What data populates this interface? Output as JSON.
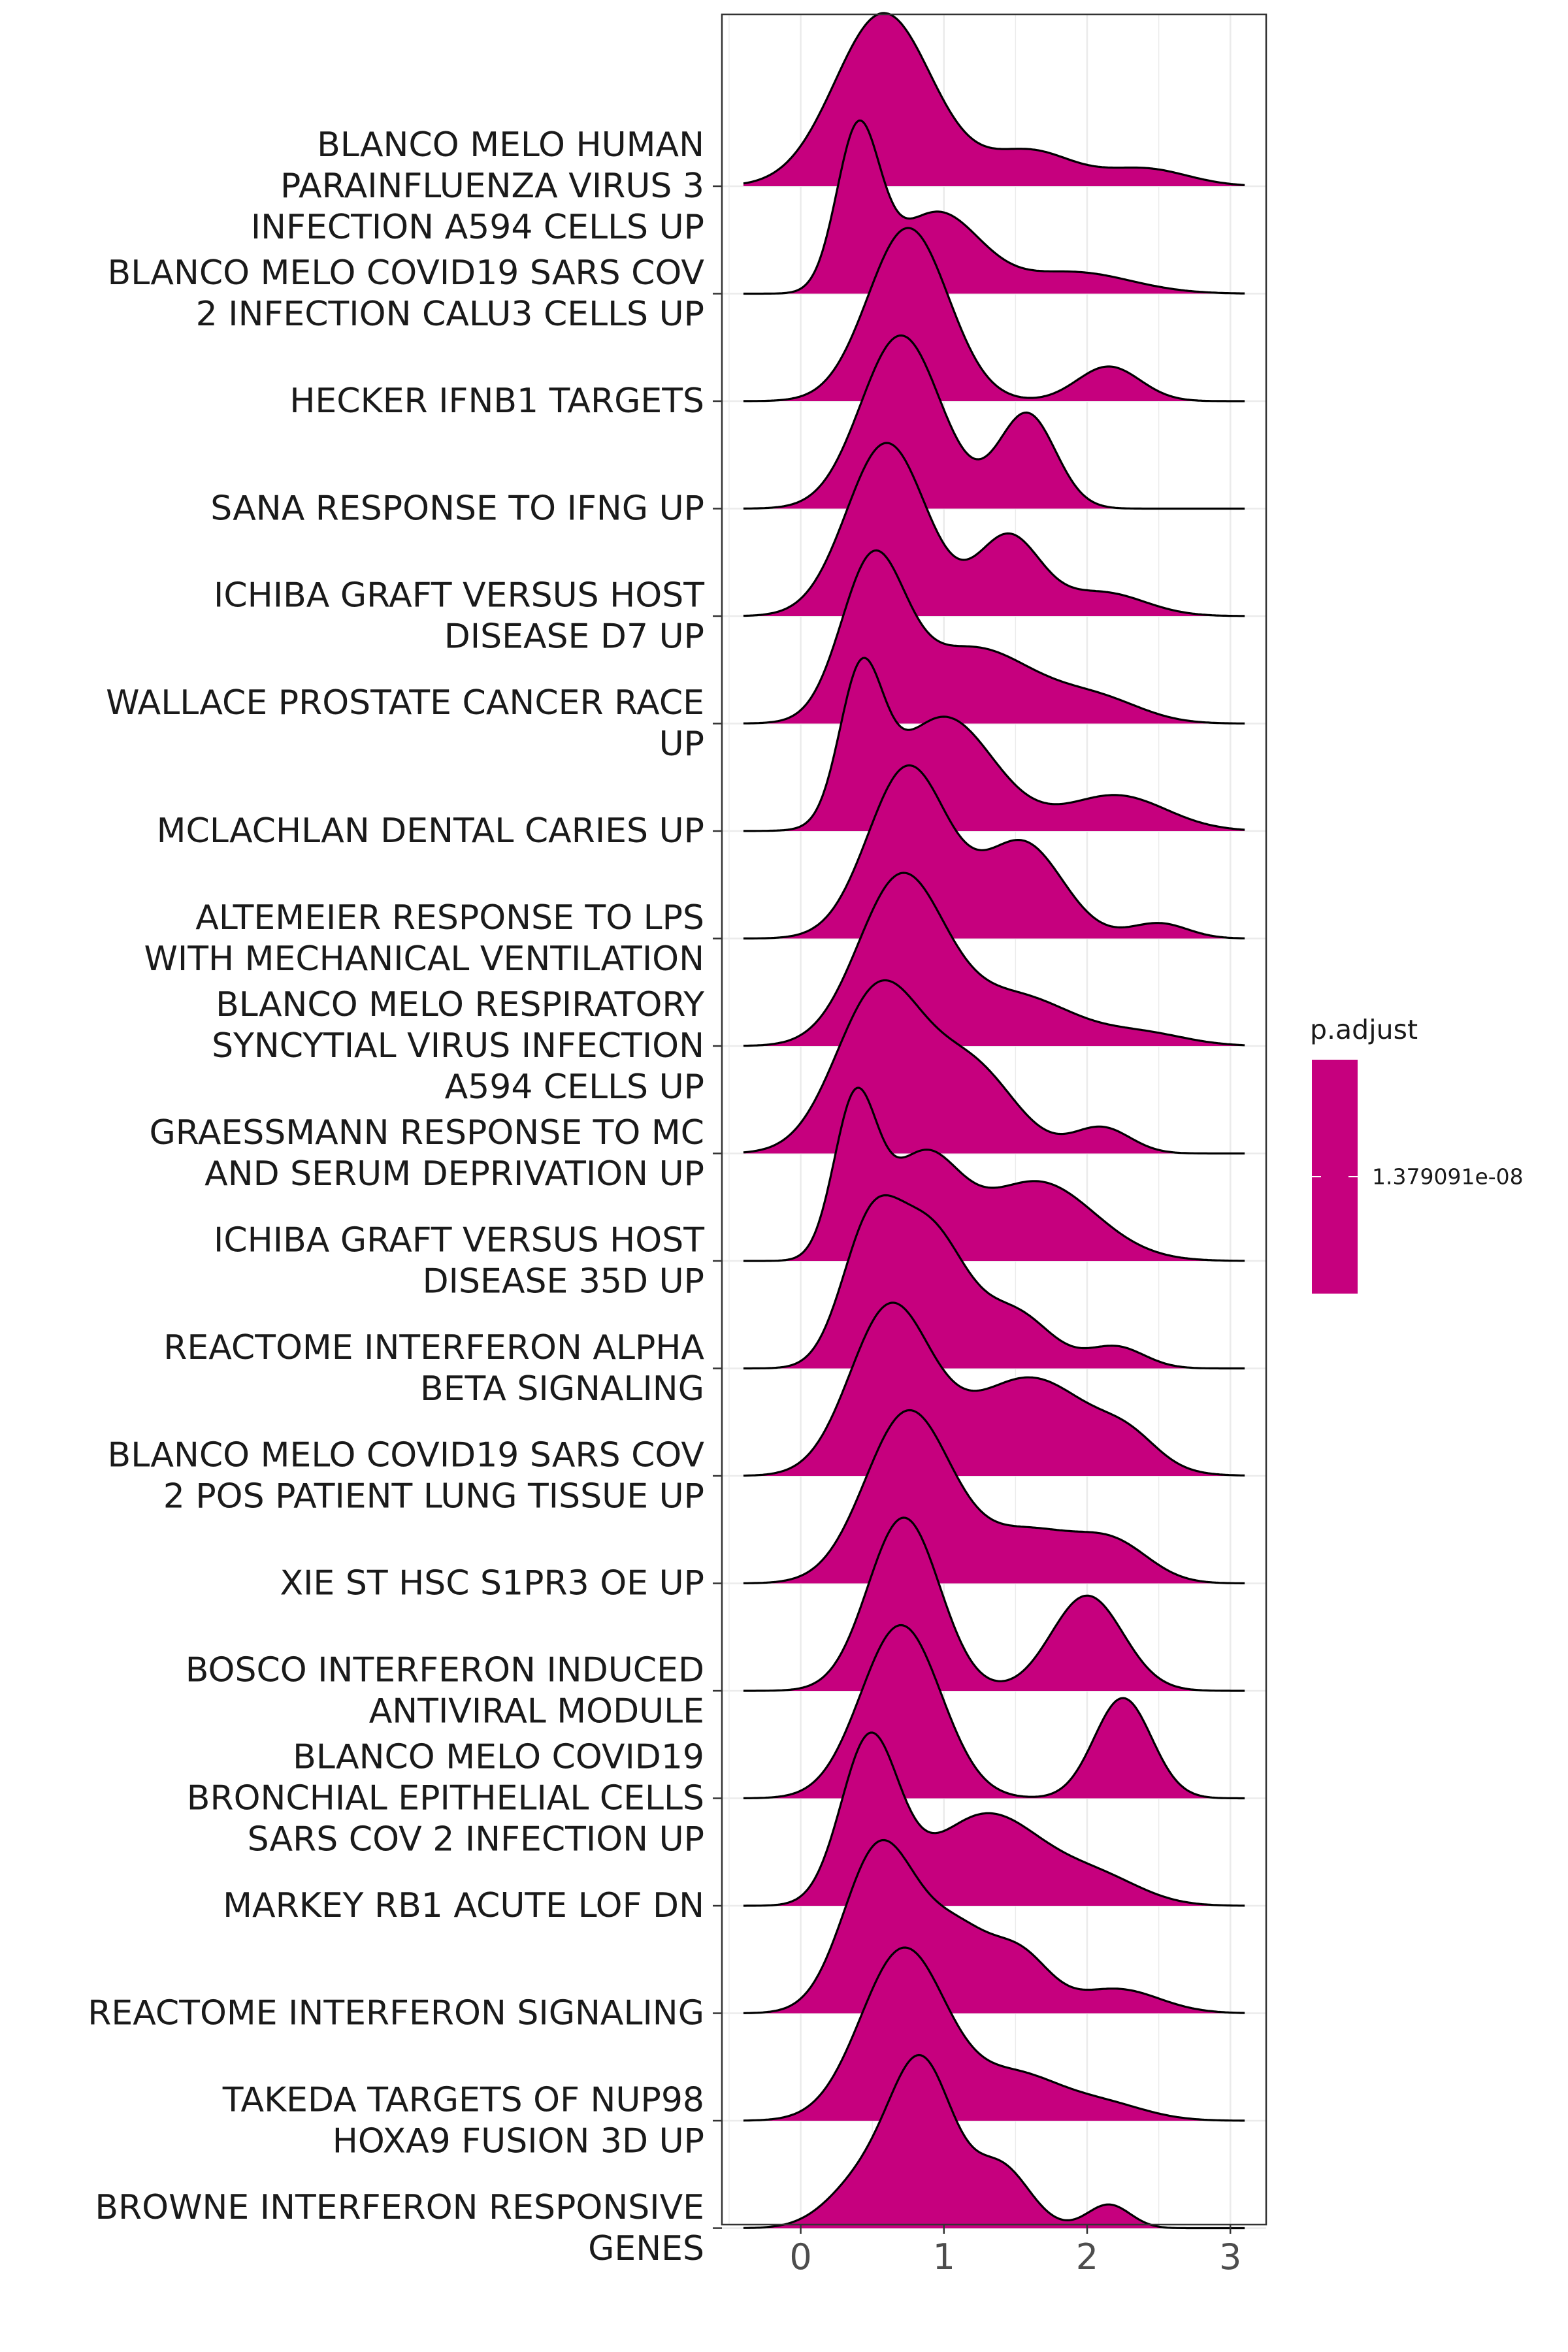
{
  "chart_data": {
    "type": "ridgeline",
    "xlim": [
      -0.55,
      3.25
    ],
    "x_ticks": [
      0,
      1,
      2,
      3
    ],
    "fill_color": "#C6007E",
    "grid": true,
    "legend": {
      "title": "p.adjust",
      "position": "right",
      "color": "#C6007E",
      "labels": [
        "1.379091e-08"
      ]
    },
    "series": [
      {
        "label": [
          "BLANCO MELO HUMAN",
          "PARAINFLUENZA VIRUS 3",
          "INFECTION A594 CELLS UP"
        ],
        "peaks": [
          [
            0.58,
            0.34,
            1.0
          ],
          [
            1.6,
            0.3,
            0.2
          ],
          [
            2.4,
            0.3,
            0.1
          ]
        ]
      },
      {
        "label": [
          "BLANCO MELO COVID19 SARS COV",
          "2 INFECTION CALU3 CELLS UP"
        ],
        "peaks": [
          [
            0.4,
            0.15,
            0.88
          ],
          [
            0.95,
            0.3,
            0.45
          ],
          [
            1.9,
            0.4,
            0.12
          ]
        ]
      },
      {
        "label": [
          "HECKER IFNB1 TARGETS"
        ],
        "peaks": [
          [
            0.75,
            0.28,
            1.0
          ],
          [
            2.15,
            0.22,
            0.2
          ]
        ]
      },
      {
        "label": [
          "SANA RESPONSE TO IFNG UP"
        ],
        "peaks": [
          [
            0.7,
            0.28,
            0.95
          ],
          [
            1.58,
            0.2,
            0.52
          ]
        ]
      },
      {
        "label": [
          "ICHIBA GRAFT VERSUS HOST",
          "DISEASE D7 UP"
        ],
        "peaks": [
          [
            0.6,
            0.28,
            0.88
          ],
          [
            1.45,
            0.22,
            0.4
          ],
          [
            2.1,
            0.3,
            0.12
          ]
        ]
      },
      {
        "label": [
          "WALLACE PROSTATE CANCER RACE",
          "UP"
        ],
        "peaks": [
          [
            0.5,
            0.22,
            0.75
          ],
          [
            1.2,
            0.45,
            0.38
          ],
          [
            2.1,
            0.3,
            0.1
          ]
        ]
      },
      {
        "label": [
          "MCLACHLAN DENTAL CARIES UP"
        ],
        "peaks": [
          [
            0.42,
            0.15,
            0.6
          ],
          [
            1.0,
            0.35,
            0.48
          ],
          [
            2.2,
            0.35,
            0.15
          ]
        ]
      },
      {
        "label": [
          "ALTEMEIER RESPONSE TO LPS",
          "WITH MECHANICAL VENTILATION"
        ],
        "peaks": [
          [
            0.75,
            0.28,
            0.9
          ],
          [
            1.55,
            0.28,
            0.5
          ],
          [
            2.5,
            0.2,
            0.08
          ]
        ]
      },
      {
        "label": [
          "BLANCO MELO RESPIRATORY",
          "SYNCYTIAL VIRUS INFECTION",
          "A594 CELLS UP"
        ],
        "peaks": [
          [
            0.7,
            0.3,
            1.0
          ],
          [
            1.5,
            0.4,
            0.3
          ],
          [
            2.4,
            0.3,
            0.07
          ]
        ]
      },
      {
        "label": [
          "GRAESSMANN RESPONSE TO MC",
          "AND SERUM DEPRIVATION UP"
        ],
        "peaks": [
          [
            0.55,
            0.3,
            0.95
          ],
          [
            1.2,
            0.3,
            0.48
          ],
          [
            2.1,
            0.2,
            0.15
          ]
        ]
      },
      {
        "label": [
          "ICHIBA GRAFT VERSUS HOST",
          "DISEASE 35D UP"
        ],
        "peaks": [
          [
            0.38,
            0.15,
            0.78
          ],
          [
            0.85,
            0.25,
            0.5
          ],
          [
            1.65,
            0.4,
            0.4
          ]
        ]
      },
      {
        "label": [
          "REACTOME INTERFERON ALPHA",
          "BETA SIGNALING"
        ],
        "peaks": [
          [
            0.48,
            0.2,
            0.72
          ],
          [
            0.9,
            0.25,
            0.75
          ],
          [
            1.5,
            0.25,
            0.3
          ],
          [
            2.2,
            0.2,
            0.12
          ]
        ]
      },
      {
        "label": [
          "BLANCO MELO COVID19 SARS COV",
          "2 POS PATIENT LUNG TISSUE UP"
        ],
        "peaks": [
          [
            0.62,
            0.28,
            0.75
          ],
          [
            1.6,
            0.45,
            0.45
          ],
          [
            2.3,
            0.2,
            0.1
          ]
        ]
      },
      {
        "label": [
          "XIE ST HSC S1PR3 OE UP"
        ],
        "peaks": [
          [
            0.75,
            0.3,
            1.0
          ],
          [
            1.6,
            0.35,
            0.3
          ],
          [
            2.2,
            0.25,
            0.2
          ]
        ]
      },
      {
        "label": [
          "BOSCO INTERFERON INDUCED",
          "ANTIVIRAL MODULE"
        ],
        "peaks": [
          [
            0.72,
            0.25,
            1.0
          ],
          [
            2.0,
            0.25,
            0.55
          ]
        ]
      },
      {
        "label": [
          "BLANCO MELO COVID19",
          "BRONCHIAL EPITHELIAL CELLS",
          "SARS COV 2 INFECTION UP"
        ],
        "peaks": [
          [
            0.7,
            0.28,
            0.95
          ],
          [
            2.25,
            0.2,
            0.55
          ]
        ]
      },
      {
        "label": [
          "MARKEY RB1 ACUTE LOF DN"
        ],
        "peaks": [
          [
            0.48,
            0.2,
            0.88
          ],
          [
            1.3,
            0.4,
            0.5
          ],
          [
            2.1,
            0.3,
            0.13
          ]
        ]
      },
      {
        "label": [
          "REACTOME INTERFERON SIGNALING"
        ],
        "peaks": [
          [
            0.55,
            0.25,
            0.95
          ],
          [
            1.1,
            0.25,
            0.45
          ],
          [
            1.55,
            0.2,
            0.28
          ],
          [
            2.2,
            0.3,
            0.14
          ]
        ]
      },
      {
        "label": [
          "TAKEDA TARGETS OF NUP98",
          "HOXA9 FUSION 3D UP"
        ],
        "peaks": [
          [
            0.72,
            0.3,
            1.0
          ],
          [
            1.5,
            0.3,
            0.25
          ],
          [
            2.1,
            0.3,
            0.1
          ]
        ]
      },
      {
        "label": [
          "BROWNE INTERFERON RESPONSIVE",
          "GENES"
        ],
        "peaks": [
          [
            0.85,
            0.22,
            1.0
          ],
          [
            0.45,
            0.25,
            0.3
          ],
          [
            1.4,
            0.2,
            0.38
          ],
          [
            2.15,
            0.15,
            0.15
          ]
        ]
      }
    ]
  }
}
